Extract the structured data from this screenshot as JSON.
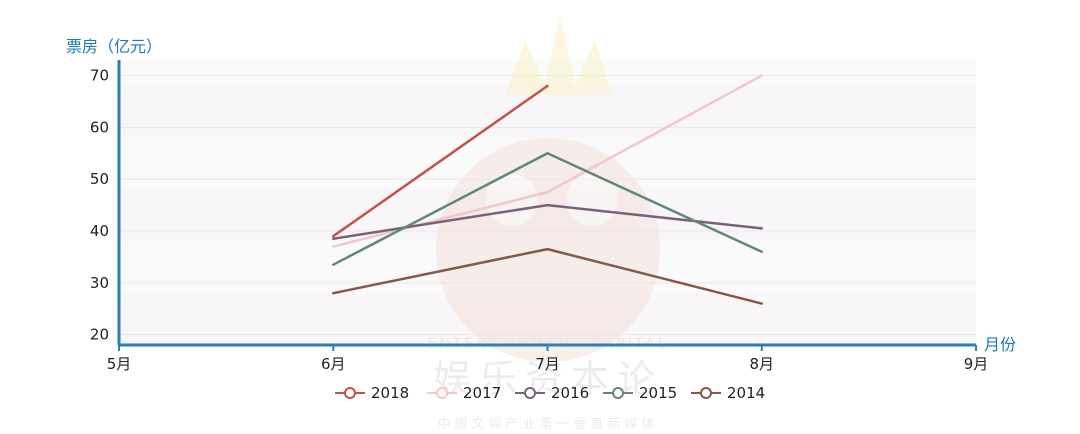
{
  "chart_data": {
    "type": "line",
    "ylabel": "票房（亿元）",
    "xlabel": "月份",
    "x_categories": [
      "5月",
      "6月",
      "7月",
      "8月",
      "9月"
    ],
    "y_ticks": [
      20,
      30,
      40,
      50,
      60,
      70
    ],
    "ylim": [
      18,
      73
    ],
    "grid": "horizontal bands",
    "legend_position": "bottom",
    "series": [
      {
        "name": "2018",
        "color": "#c0544a",
        "x": [
          "6月",
          "7月"
        ],
        "values": [
          39.0,
          68.0
        ]
      },
      {
        "name": "2017",
        "color": "#f1c7c9",
        "x": [
          "6月",
          "7月",
          "8月"
        ],
        "values": [
          37.0,
          47.5,
          70.0
        ]
      },
      {
        "name": "2016",
        "color": "#7a6178",
        "x": [
          "6月",
          "7月",
          "8月"
        ],
        "values": [
          38.5,
          45.0,
          40.5
        ]
      },
      {
        "name": "2015",
        "color": "#5f8877",
        "x": [
          "6月",
          "7月",
          "8月"
        ],
        "values": [
          33.5,
          55.0,
          36.0
        ]
      },
      {
        "name": "2014",
        "color": "#85584a",
        "x": [
          "6月",
          "7月",
          "8月"
        ],
        "values": [
          28.0,
          36.5,
          26.0
        ]
      }
    ]
  },
  "watermark": {
    "brand_en": "ENTERTAINMENT CAPITAL",
    "brand_cn": "娱乐资本论",
    "tagline": "中国文娱产业第一垂直新媒体"
  }
}
